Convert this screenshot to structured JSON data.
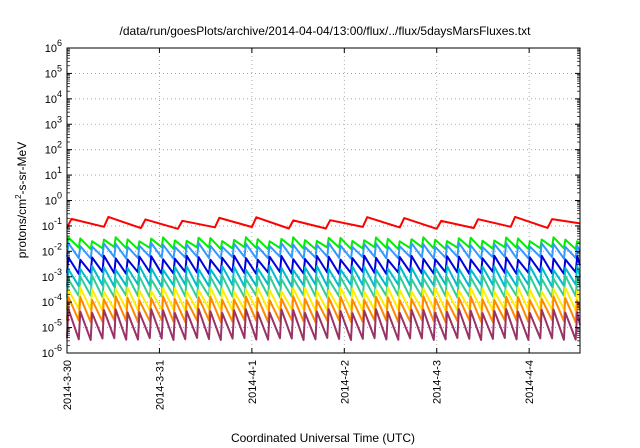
{
  "chart_data": {
    "type": "line",
    "title": "/data/run/goesPlots/archive/2014-04-04/13:00/flux/../flux/5daysMarsFluxes.txt",
    "xlabel": "Coordinated Universal Time (UTC)",
    "ylabel_main": "protons/cm",
    "ylabel_sup": "2",
    "ylabel_tail": "-s-sr-MeV",
    "y_scale": "log",
    "y_tick_base": "10",
    "y_tick_exponents": [
      "-6",
      "-5",
      "-4",
      "-3",
      "-2",
      "-1",
      "0",
      "1",
      "2",
      "3",
      "4",
      "5",
      "6"
    ],
    "ylim_exp": [
      -6,
      6
    ],
    "x_tick_labels": [
      "2014-3-30",
      "2014-3-31",
      "2014-4-1",
      "2014-4-2",
      "2014-4-3",
      "2014-4-4"
    ],
    "xlim_days": [
      0,
      5.55
    ],
    "x_start_date": "2014-3-30",
    "grid": true,
    "sawtooth_period_days": 0.128,
    "series": [
      {
        "color": "#ff0000",
        "base_log": -0.9,
        "amp_log": 0.35,
        "period_days": 0.4
      },
      {
        "color": "#00ee00",
        "base_log": -1.7,
        "amp_log": 0.35,
        "period_days": 0.128
      },
      {
        "color": "#3399ff",
        "base_log": -2.0,
        "amp_log": 0.5,
        "period_days": 0.128
      },
      {
        "color": "#0000dd",
        "base_log": -2.55,
        "amp_log": 0.6,
        "period_days": 0.128
      },
      {
        "color": "#00bbcc",
        "base_log": -3.0,
        "amp_log": 0.7,
        "period_days": 0.128
      },
      {
        "color": "#33cc99",
        "base_log": -3.4,
        "amp_log": 0.75,
        "period_days": 0.128
      },
      {
        "color": "#ffee00",
        "base_log": -3.9,
        "amp_log": 0.8,
        "period_days": 0.128
      },
      {
        "color": "#ff8800",
        "base_log": -4.3,
        "amp_log": 0.9,
        "period_days": 0.128
      },
      {
        "color": "#993366",
        "base_log": -4.9,
        "amp_log": 1.1,
        "period_days": 0.128
      }
    ]
  }
}
